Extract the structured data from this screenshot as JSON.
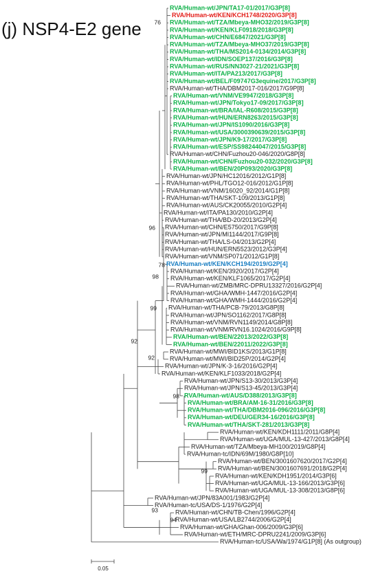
{
  "title": "(j) NSP4-E2 gene",
  "leaves": [
    {
      "label": "RVA/Human-wt/JPN/TA17-01/2017/G3P[8]",
      "color": "#10b24a"
    },
    {
      "label": "RVA/Human-wt/KEN/KCH1748/2020/G3P[8]",
      "color": "#e3201b"
    },
    {
      "label": "RVA/Human-wt/TZA/Mbeya-MHO32/2019/G3P[8]",
      "color": "#10b24a"
    },
    {
      "label": "RVA/Human-wt/KEN/KLF0918/2018/G3P[8]",
      "color": "#10b24a"
    },
    {
      "label": "RVA/Human-wt/CHN/E6847/2021/G3P[8]",
      "color": "#10b24a"
    },
    {
      "label": "RVA/Human-wt/TZA/Mbeya-MHO37/2019/G3P[8]",
      "color": "#10b24a"
    },
    {
      "label": "RVA/Human-wt/THA/MS2014-0134/2014/G3P[8]",
      "color": "#10b24a"
    },
    {
      "label": "RVA/Human-wt/IDN/SOEP137/2016/G3P[8]",
      "color": "#10b24a"
    },
    {
      "label": "RVA/Human-wt/RUS/NN3027-21/2021/G3P[8]",
      "color": "#10b24a"
    },
    {
      "label": "RVA/Human-wt/ITA/PA213/2017/G3P[8]",
      "color": "#10b24a"
    },
    {
      "label": "RVA/Human-wt/BEL/F09747G3equine/2017/G3P[8]",
      "color": "#10b24a"
    },
    {
      "label": "RVA/Human-wt/THA/DBM2017-016/2017/G9P[8]"
    },
    {
      "label": "RVA/Human-wt/VNM/VE9947/2018/G3P[8]",
      "color": "#10b24a"
    },
    {
      "label": "RVA/Human-wt/JPN/Tokyo17-09/2017/G3P[8]",
      "color": "#10b24a"
    },
    {
      "label": "RVA/Human-wt/BRA/IAL-R608/2015/G3P[8]",
      "color": "#10b24a"
    },
    {
      "label": "RVA/Human-wt/HUN/ERN8263/2015/G3P[8]",
      "color": "#10b24a"
    },
    {
      "label": "RVA/Human-wt/JPN/IS1090/2016/G3P[8]",
      "color": "#10b24a"
    },
    {
      "label": "RVA/Human-wt/USA/3000390639/2015/G3P[8]",
      "color": "#10b24a"
    },
    {
      "label": "RVA/Human-wt/JPN/K9-17/2017/G3P[8]",
      "color": "#10b24a"
    },
    {
      "label": "RVA/Human-wt/ESP/SS98244047/2015/G3P[8]",
      "color": "#10b24a"
    },
    {
      "label": "RVA/Human-wt/CHN/Fuzhou20-046/2020/G8P[8]"
    },
    {
      "label": "RVA/Human-wt/CHN/Fuzhou20-032/2020/G3P[8]",
      "color": "#10b24a"
    },
    {
      "label": "RVA/Human-wt/BEN/20P093/2020/G3P[8]",
      "color": "#10b24a"
    },
    {
      "label": "RVA/Human-wt/JPN/HC12016/2012/G1P[8]"
    },
    {
      "label": "RVA/Human-wt/PHL/TGO12-016/2012/G1P[8]"
    },
    {
      "label": "RVA/Human-wt/VNM/16020_92/2014/G1P[8]"
    },
    {
      "label": "RVA/Human-wt/THA/SKT-109/2013/G1P[8]"
    },
    {
      "label": "RVA/Human-wt/AUS/CK20055/2010/G2P[4]"
    },
    {
      "label": "RVA/Human-wt/ITA/PA130/2010/G2P[4]"
    },
    {
      "label": "RVA/Human-wt/THA/BD-20/2013/G2P[4]"
    },
    {
      "label": "RVA/Human-wt/CHN/E5750/2017/G9P[8]"
    },
    {
      "label": "RVA/Human-wt/JPN/MI1144/2017/G9P[8]"
    },
    {
      "label": "RVA/Human-wt/THA/LS-04/2013/G2P[4]"
    },
    {
      "label": "RVA/Human-wt/HUN/ERN5523/2012/G3P[4]"
    },
    {
      "label": "RVA/Human-wt/VNM/SP071/2012/G1P[8]"
    },
    {
      "label": "RVA/Human-wt/KEN/KCH194/2019/G2P[4]",
      "color": "#1a7ec2"
    },
    {
      "label": "RVA/Human-wt/KEN/3920/2017/G2P[4]"
    },
    {
      "label": "RVA/Human-wt/KEN/KLF1065/2017/G2P[4]"
    },
    {
      "label": "RVA/Human-wt/ZMB/MRC-DPRU13327/2016/G2P[4]"
    },
    {
      "label": "RVA/Human-wt/GHA/WMH-1447/2016/G2P[4]"
    },
    {
      "label": "RVA/Human-wt/GHA/WMH-1444/2016/G2P[4]"
    },
    {
      "label": "RVA/Human-wt/THA/PCB-79/2013/G8P[8]"
    },
    {
      "label": "RVA/Human-wt/JPN/SO1162/2017/G8P[8]"
    },
    {
      "label": "RVA/Human-wt/VNM/RVN1149/2014/G8P[8]"
    },
    {
      "label": "RVA/Human-wt/VNM/RVN16.1024/2016/G9P[8]"
    },
    {
      "label": "RVA/Human-wt/BEN/22013/2022/G3P[8]",
      "color": "#10b24a"
    },
    {
      "label": "RVA/Human-wt/BEN/22011/2022/G3P[8]",
      "color": "#10b24a"
    },
    {
      "label": "RVA/Human-wt/MWI/BID1KS/2013/G1P[8]"
    },
    {
      "label": "RVA/Human-wt/MWI/BID25P/2014/G2P[4]"
    },
    {
      "label": "RVA/Human-wt/JPN/K-3-16/2016/G2P[4]"
    },
    {
      "label": "RVA/Human-wt/KEN/KLF1033/2018/G2P[4]"
    },
    {
      "label": "RVA/Human-wt/JPN/S13-30/2013/G3P[4]"
    },
    {
      "label": "RVA/Human-wt/JPN/S13-45/2013/G3P[4]"
    },
    {
      "label": "RVA/Human-wt/AUS/D388/2013/G3P[8]",
      "color": "#10b24a"
    },
    {
      "label": "RVA/Human-wt/BRA/AM-16-31/2016/G3P[8]",
      "color": "#10b24a"
    },
    {
      "label": "RVA/Human-wt/THA/DBM2016-096/2016/G3P[8]",
      "color": "#10b24a"
    },
    {
      "label": "RVA/Human-wt/DEU/GER34-16/2016/G3P[8]",
      "color": "#10b24a"
    },
    {
      "label": "RVA/Human-wt/THA/SKT-281/2013/G3P[8]",
      "color": "#10b24a"
    },
    {
      "label": "RVA/Human-wt/KEN/KDH1111/2011/G8P[4]"
    },
    {
      "label": "RVA/Human-wt/UGA/MUL-13-427/2013/G8P[4]"
    },
    {
      "label": "RVA/Human-wt/TZA/Mbeya-MH100/2019/G8P[4]"
    },
    {
      "label": "RVA/Human-tc/IDN/69M/1980/G8P[10]"
    },
    {
      "label": "RVA/Human-wt/BEN/3001607620/2017/G2P[4]"
    },
    {
      "label": "RVA/Human-wt/BEN/3001607691/2018/G2P[4]"
    },
    {
      "label": "RVA/Human-wt/KEN/KDH1951/2014/G3P[6]"
    },
    {
      "label": "RVA/Human-wt/UGA/MUL-13-166/2013/G3P[6]"
    },
    {
      "label": "RVA/Human-wt/UGA/MUL-13-308/2013/G8P[6]"
    },
    {
      "label": "RVA/Human-wt/JPN/83A001/1983/G2P[4]"
    },
    {
      "label": "RVA/Human-tc/USA/DS-1/1976/G2P[4]"
    },
    {
      "label": "RVA/Human-wt/CHN/TB-Chen/1996/G2P[4]"
    },
    {
      "label": "RVA/Human-wt/USA/LB2744/2006/G2P[4]"
    },
    {
      "label": "RVA/Human-wt/GHA/Ghan-006/2009/G3P[6]"
    },
    {
      "label": "RVA/Human-wt/ETH/MRC-DPRU2241/2009/G3P[6]"
    },
    {
      "label": "RVA/Human-tc/USA/Wa/1974/G1P[8] (As outgroup)"
    }
  ],
  "bootstrap": [
    76,
    96,
    78,
    98,
    99,
    92,
    92,
    98,
    99,
    93,
    94
  ],
  "scale_label": "0.05"
}
